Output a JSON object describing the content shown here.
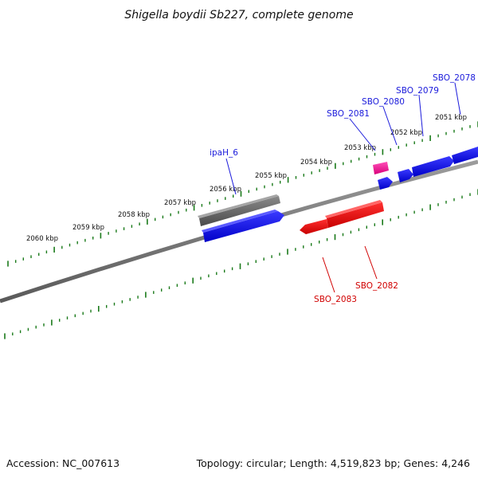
{
  "title": "Shigella boydii Sb227, complete genome",
  "footer": {
    "accession": "Accession: NC_007613",
    "topology": "Topology: circular; Length: 4,519,823 bp; Genes: 4,246"
  },
  "ticks": [
    "2060 kbp",
    "2059 kbp",
    "2058 kbp",
    "2057 kbp",
    "2056 kbp",
    "2055 kbp",
    "2054 kbp",
    "2053 kbp",
    "2052 kbp",
    "2051 kbp"
  ],
  "genes": {
    "ipaH_6": "ipaH_6",
    "SBO_2081": "SBO_2081",
    "SBO_2080": "SBO_2080",
    "SBO_2079": "SBO_2079",
    "SBO_2078": "SBO_2078",
    "SBO_2083": "SBO_2083",
    "SBO_2082": "SBO_2082"
  },
  "colors": {
    "forward_gene": "#1010ee",
    "reverse_gene": "#ee0a0a",
    "gray_feature": "#666666",
    "pink_feature": "#ee1199",
    "backbone": "#888888",
    "tick_marks": "#1a7a1a",
    "label_blue": "#1a1adb",
    "label_red": "#d10000"
  }
}
